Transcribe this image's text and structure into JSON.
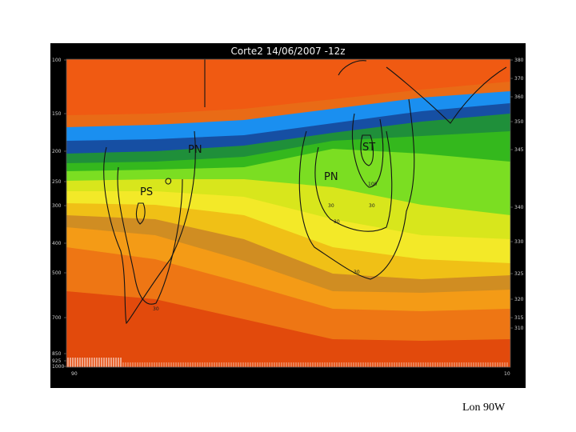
{
  "caption": "Lon 90W",
  "chart_data": {
    "type": "heatmap",
    "title": "Corte2 14/06/2007 -12z",
    "left_ticks": [
      "100",
      "150",
      "200",
      "250",
      "300",
      "400",
      "500",
      "700",
      "850",
      "925",
      "1000"
    ],
    "right_ticks": [
      "380",
      "370",
      "360",
      "350",
      "345",
      "340",
      "330",
      "325",
      "320",
      "315",
      "310"
    ],
    "bottom_left_label": "90",
    "bottom_right_label": "10",
    "feature_labels": [
      "PN",
      "PS",
      "PN",
      "ST"
    ],
    "contour_labels": [
      "30",
      "30",
      "100",
      "30",
      "30",
      "30"
    ],
    "color_bands": [
      {
        "color": "#f05a12"
      },
      {
        "color": "#e96b16"
      },
      {
        "color": "#1a8ff0"
      },
      {
        "color": "#164fa3"
      },
      {
        "color": "#1f8f3a"
      },
      {
        "color": "#34b81d"
      },
      {
        "color": "#7bde22"
      },
      {
        "color": "#d8e61c"
      },
      {
        "color": "#f3e928"
      },
      {
        "color": "#f0c016"
      },
      {
        "color": "#d08d22"
      },
      {
        "color": "#f49b16"
      },
      {
        "color": "#ee7614"
      }
    ],
    "background_color": "#e24a0c"
  }
}
